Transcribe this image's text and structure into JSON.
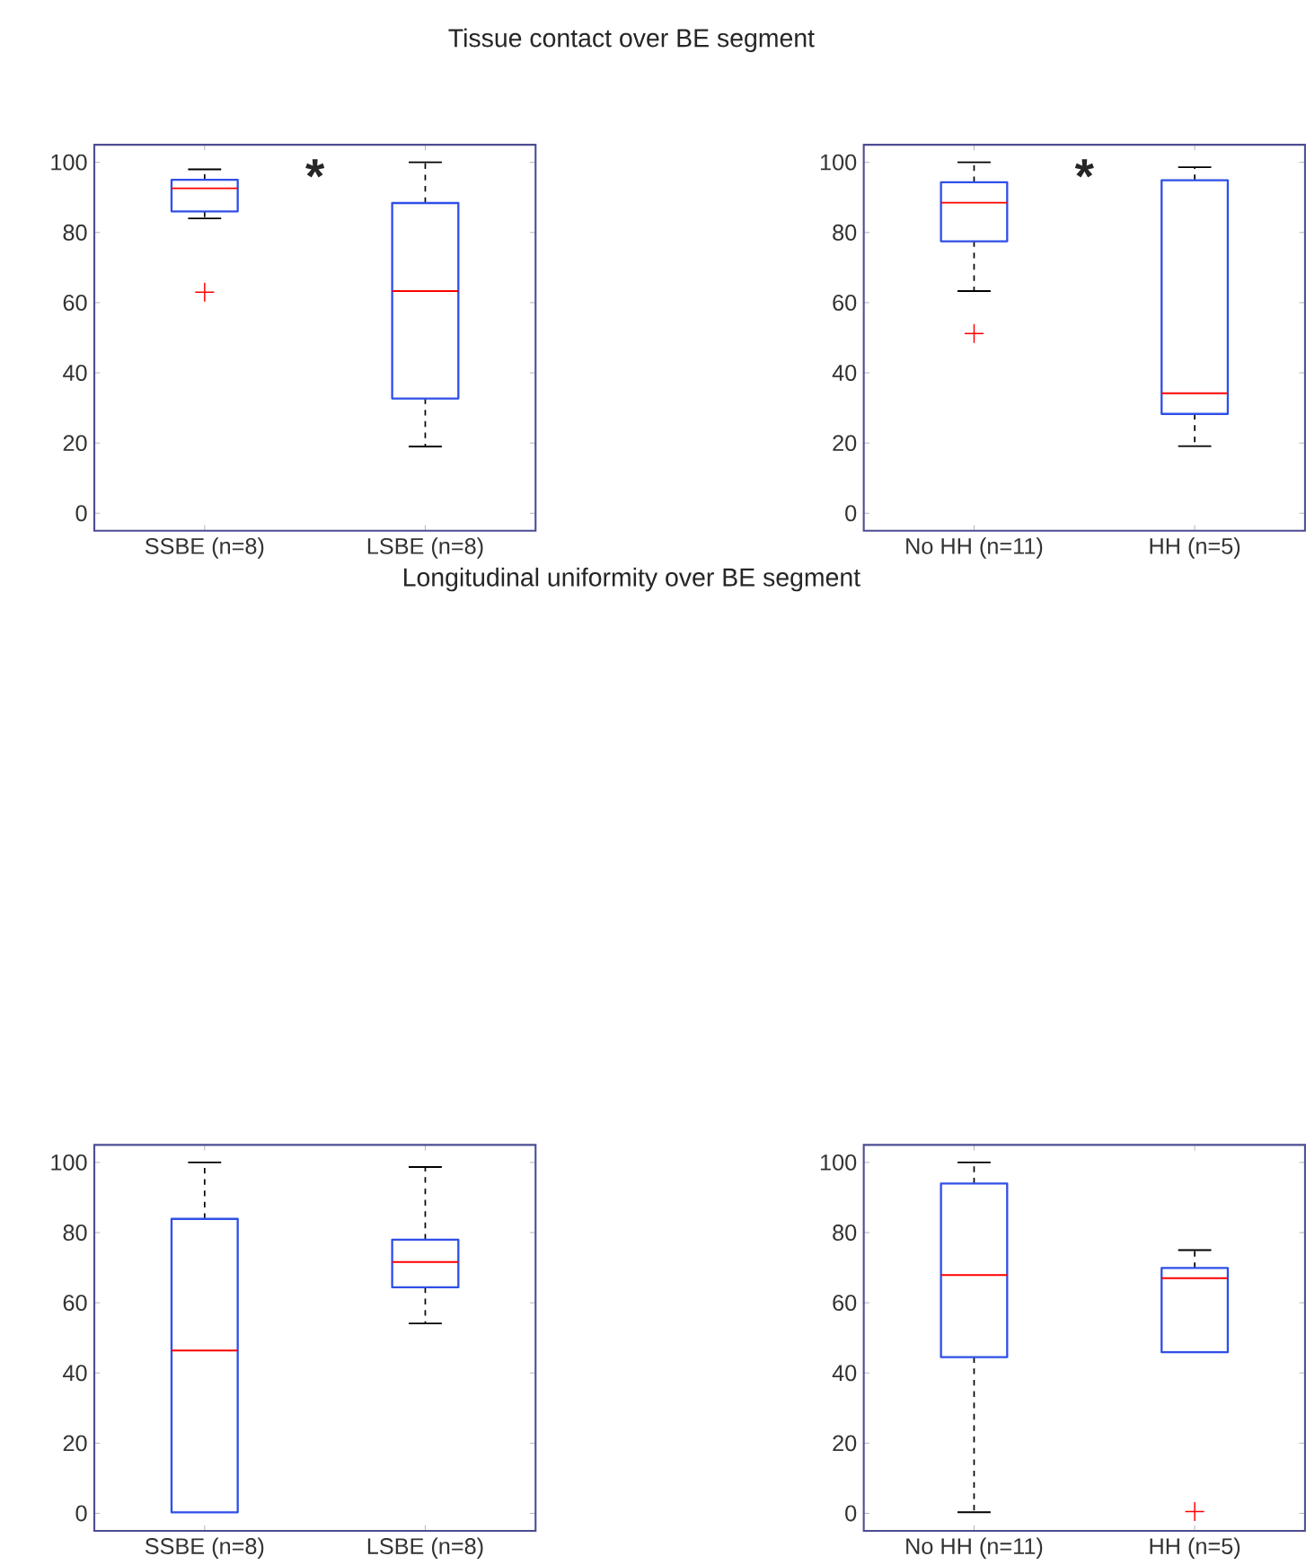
{
  "chart_data": [
    {
      "type": "box",
      "title": "Tissue contact over BE segment",
      "categories": [
        "SSBE (n=8)",
        "LSBE (n=8)"
      ],
      "ylim": [
        -5,
        105
      ],
      "yticks": [
        0,
        20,
        40,
        60,
        80,
        100
      ],
      "color": "#2f4fe8",
      "annotations": [
        "*"
      ],
      "boxes": [
        {
          "low": 84,
          "q1": 86,
          "median": 92.6,
          "q3": 95,
          "high": 98,
          "outliers": [
            63
          ]
        },
        {
          "low": 19,
          "q1": 32.7,
          "median": 63.3,
          "q3": 88.4,
          "high": 100
        }
      ]
    },
    {
      "type": "box",
      "categories": [
        "No HH (n=11)",
        "HH (n=5)"
      ],
      "ylim": [
        -5,
        105
      ],
      "yticks": [
        0,
        20,
        40,
        60,
        80,
        100
      ],
      "color": "#2f4fe8",
      "annotations": [
        "*"
      ],
      "boxes": [
        {
          "low": 63.3,
          "q1": 77.5,
          "median": 88.5,
          "q3": 94.3,
          "high": 100,
          "outliers": [
            51.2
          ]
        },
        {
          "low": 19.1,
          "q1": 28.3,
          "median": 34.2,
          "q3": 94.9,
          "high": 98.6
        }
      ]
    },
    {
      "type": "box",
      "title": "Longitudinal uniformity over BE segment",
      "categories": [
        "SSBE (n=8)",
        "LSBE (n=8)"
      ],
      "ylim": [
        -5,
        105
      ],
      "yticks": [
        0,
        20,
        40,
        60,
        80,
        100
      ],
      "color": "#2f4fe8",
      "boxes": [
        {
          "low": 0.3,
          "q1": 0.3,
          "median": 46.4,
          "q3": 83.9,
          "high": 100
        },
        {
          "low": 54.1,
          "q1": 64.4,
          "median": 71.6,
          "q3": 78,
          "high": 98.7
        }
      ]
    },
    {
      "type": "box",
      "categories": [
        "No HH (n=11)",
        "HH (n=5)"
      ],
      "ylim": [
        -5,
        105
      ],
      "yticks": [
        0,
        20,
        40,
        60,
        80,
        100
      ],
      "color": "#2f4fe8",
      "boxes": [
        {
          "low": 0.3,
          "q1": 44.5,
          "median": 67.9,
          "q3": 94,
          "high": 100
        },
        {
          "low": 45.9,
          "q1": 45.9,
          "median": 67,
          "q3": 69.9,
          "high": 75,
          "outliers": [
            0.5
          ]
        }
      ]
    }
  ]
}
